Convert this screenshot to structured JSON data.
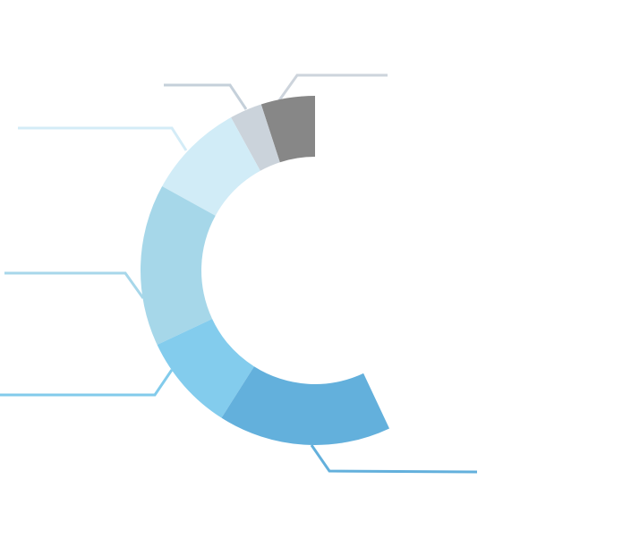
{
  "chart_data": {
    "type": "donut",
    "values": [
      5,
      3,
      9,
      15,
      9,
      16
    ],
    "colors": [
      "#878787",
      "#cbd3db",
      "#d1ecf7",
      "#a6d7e9",
      "#83cced",
      "#63b0dc"
    ]
  }
}
